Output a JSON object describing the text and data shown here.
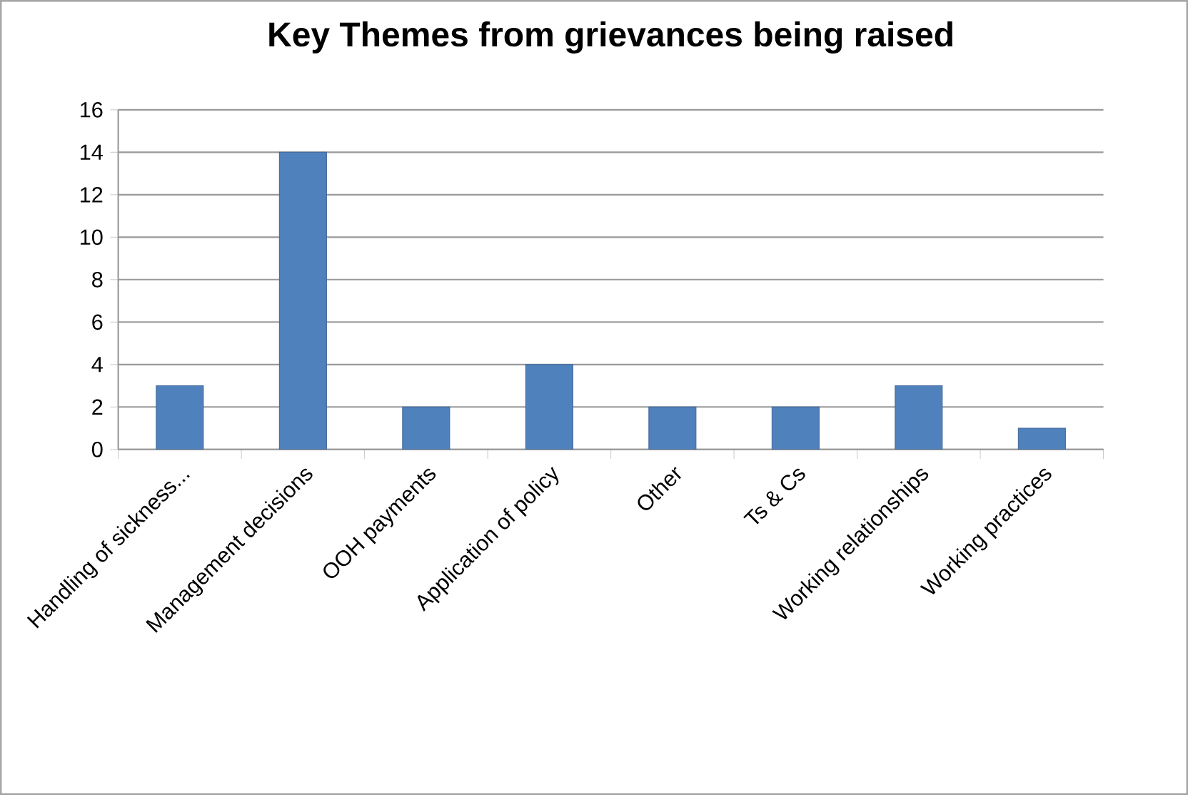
{
  "chart_data": {
    "type": "bar",
    "title": "Key Themes from grievances being raised",
    "categories": [
      "Handling of sickness...",
      "Management decisions",
      "OOH payments",
      "Application of policy",
      "Other",
      "Ts & Cs",
      "Working relationships",
      "Working practices"
    ],
    "values": [
      3,
      14,
      2,
      4,
      2,
      2,
      3,
      1
    ],
    "color": "#4f81bd",
    "ylim": [
      0,
      16
    ],
    "yticks": [
      0,
      2,
      4,
      6,
      8,
      10,
      12,
      14,
      16
    ],
    "grid": "y"
  }
}
